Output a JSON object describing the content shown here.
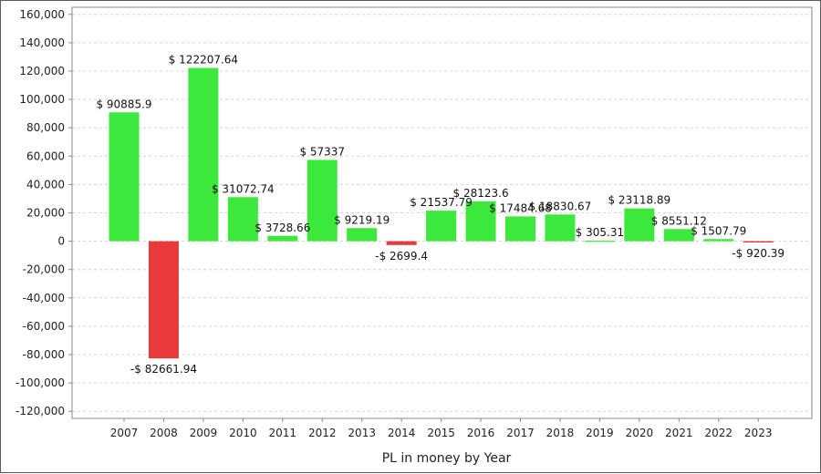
{
  "chart_data": {
    "type": "bar",
    "xlabel": "PL in money by Year",
    "ylabel": "",
    "ylim": [
      -125000,
      165000
    ],
    "yticks": [
      160000,
      140000,
      120000,
      100000,
      80000,
      60000,
      40000,
      20000,
      0,
      -20000,
      -40000,
      -60000,
      -80000,
      -100000,
      -120000
    ],
    "ytick_labels": [
      "160,000",
      "140,000",
      "120,000",
      "100,000",
      "80,000",
      "60,000",
      "40,000",
      "20,000",
      "0",
      "-20,000",
      "-40,000",
      "-60,000",
      "-80,000",
      "-100,000",
      "-120,000"
    ],
    "grid": true,
    "categories": [
      "2007",
      "2008",
      "2009",
      "2010",
      "2011",
      "2012",
      "2013",
      "2014",
      "2015",
      "2016",
      "2017",
      "2018",
      "2019",
      "2020",
      "2021",
      "2022",
      "2023"
    ],
    "values": [
      90885.9,
      -82661.94,
      122207.64,
      31072.74,
      3728.66,
      57337,
      9219.19,
      -2699.4,
      21537.79,
      28123.6,
      17484.68,
      18830.67,
      305.31,
      23118.89,
      8551.12,
      1507.79,
      -920.39
    ],
    "data_labels": [
      "$ 90885.9",
      "-$ 82661.94",
      "$ 122207.64",
      "$ 31072.74",
      "$ 3728.66",
      "$ 57337",
      "$ 9219.19",
      "-$ 2699.4",
      "$ 21537.79",
      "$ 28123.6",
      "$ 17484.68",
      "$ 18830.67",
      "$ 305.31",
      "$ 23118.89",
      "$ 8551.12",
      "$ 1507.79",
      "-$ 920.39"
    ],
    "colors": {
      "positive": "#3de83d",
      "negative": "#e83a3a",
      "grid": "#d4d4d4",
      "axis": "#8a8a8a"
    }
  }
}
